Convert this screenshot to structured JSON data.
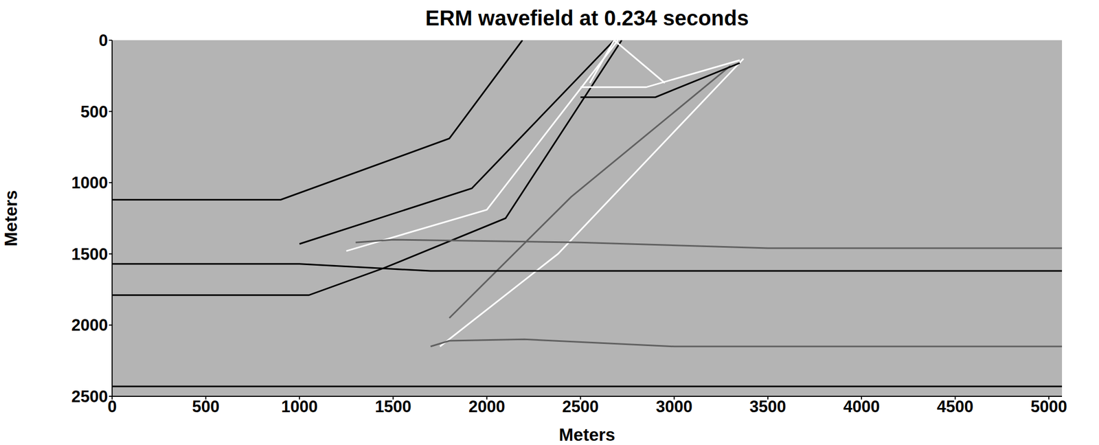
{
  "chart_data": {
    "type": "line",
    "title": "ERM wavefield at 0.234 seconds",
    "x_label": "Meters",
    "y_label": "Meters",
    "xlim": [
      0,
      5070
    ],
    "ylim": [
      0,
      2500
    ],
    "xticks": [
      0,
      500,
      1000,
      1500,
      2000,
      2500,
      3000,
      3500,
      4000,
      4500,
      5000
    ],
    "yticks": [
      0,
      500,
      1000,
      1500,
      2000,
      2500
    ],
    "grid": false,
    "background": "#b4b4b4",
    "series": [
      {
        "color": "#000000",
        "x": [
          0,
          900,
          1800,
          2190
        ],
        "values": [
          1120,
          1120,
          690,
          0
        ]
      },
      {
        "color": "#000000",
        "x": [
          1000,
          1920,
          2680
        ],
        "values": [
          1430,
          1040,
          0
        ]
      },
      {
        "color": "#ffffff",
        "x": [
          1250,
          2000,
          2700
        ],
        "values": [
          1480,
          1190,
          0
        ]
      },
      {
        "color": "#000000",
        "x": [
          0,
          1050,
          1450,
          2100,
          2720
        ],
        "values": [
          1790,
          1790,
          1600,
          1250,
          0
        ]
      },
      {
        "color": "#ffffff",
        "x": [
          1750,
          2380,
          3370
        ],
        "values": [
          2150,
          1500,
          130
        ]
      },
      {
        "color": "#606060",
        "x": [
          1800,
          2450,
          3300
        ],
        "values": [
          1950,
          1100,
          180
        ]
      },
      {
        "color": "#000000",
        "x": [
          0,
          1000,
          1700,
          5070
        ],
        "values": [
          1570,
          1570,
          1620,
          1620
        ]
      },
      {
        "color": "#606060",
        "x": [
          1300,
          1500,
          2500,
          3500,
          5070
        ],
        "values": [
          1420,
          1400,
          1420,
          1460,
          1460
        ]
      },
      {
        "color": "#606060",
        "x": [
          1700,
          1800,
          2200,
          3000,
          5070
        ],
        "values": [
          2150,
          2110,
          2100,
          2150,
          2150
        ]
      },
      {
        "color": "#000000",
        "x": [
          0,
          5070
        ],
        "values": [
          2430,
          2430
        ]
      },
      {
        "color": "#000000",
        "x": [
          2500,
          2900,
          3350
        ],
        "values": [
          400,
          400,
          160
        ]
      },
      {
        "color": "#ffffff",
        "x": [
          2500,
          2850,
          3350
        ],
        "values": [
          330,
          330,
          140
        ]
      },
      {
        "color": "#ffffff",
        "x": [
          2550,
          2680,
          2950
        ],
        "values": [
          300,
          0,
          300
        ]
      }
    ]
  }
}
